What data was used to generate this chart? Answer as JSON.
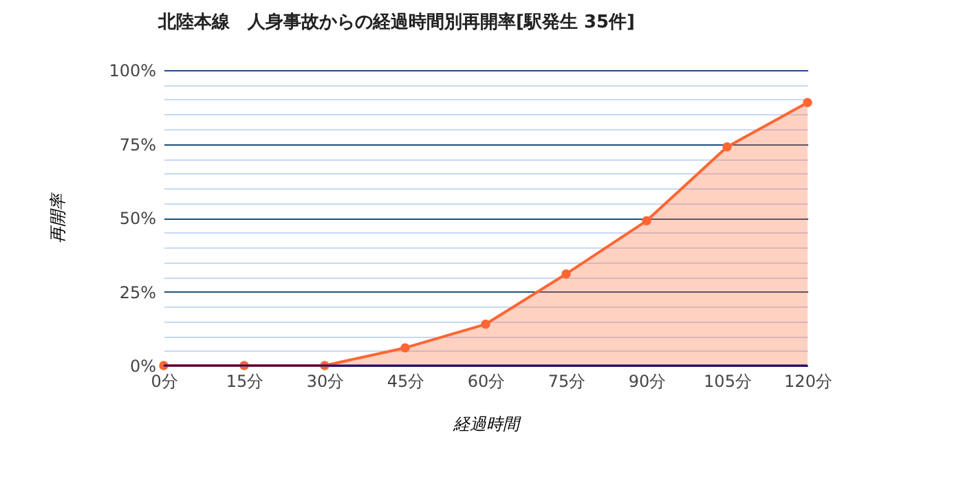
{
  "chart_data": {
    "type": "area",
    "title": "北陸本線　人身事故からの経過時間別再開率[駅発生 35件]",
    "xlabel": "経過時間",
    "ylabel": "再開率",
    "categories": [
      "0分",
      "15分",
      "30分",
      "45分",
      "60分",
      "75分",
      "90分",
      "105分",
      "120分"
    ],
    "series": [
      {
        "color": "#ff6633",
        "values": [
          0,
          0,
          0,
          6,
          14,
          31,
          49,
          74,
          89
        ]
      }
    ],
    "ylim": [
      0,
      100
    ],
    "yticks": [
      {
        "value": 0,
        "label": "0%"
      },
      {
        "value": 5,
        "label": null
      },
      {
        "value": 10,
        "label": null
      },
      {
        "value": 15,
        "label": null
      },
      {
        "value": 20,
        "label": null
      },
      {
        "value": 25,
        "label": "25%"
      },
      {
        "value": 30,
        "label": null
      },
      {
        "value": 35,
        "label": null
      },
      {
        "value": 40,
        "label": null
      },
      {
        "value": 45,
        "label": null
      },
      {
        "value": 50,
        "label": "50%"
      },
      {
        "value": 55,
        "label": null
      },
      {
        "value": 60,
        "label": null
      },
      {
        "value": 65,
        "label": null
      },
      {
        "value": 70,
        "label": null
      },
      {
        "value": 75,
        "label": "75%"
      },
      {
        "value": 80,
        "label": null
      },
      {
        "value": 85,
        "label": null
      },
      {
        "value": 90,
        "label": null
      },
      {
        "value": 95,
        "label": null
      },
      {
        "value": 100,
        "label": "100%"
      }
    ],
    "grid": "y",
    "marker": "circle"
  }
}
